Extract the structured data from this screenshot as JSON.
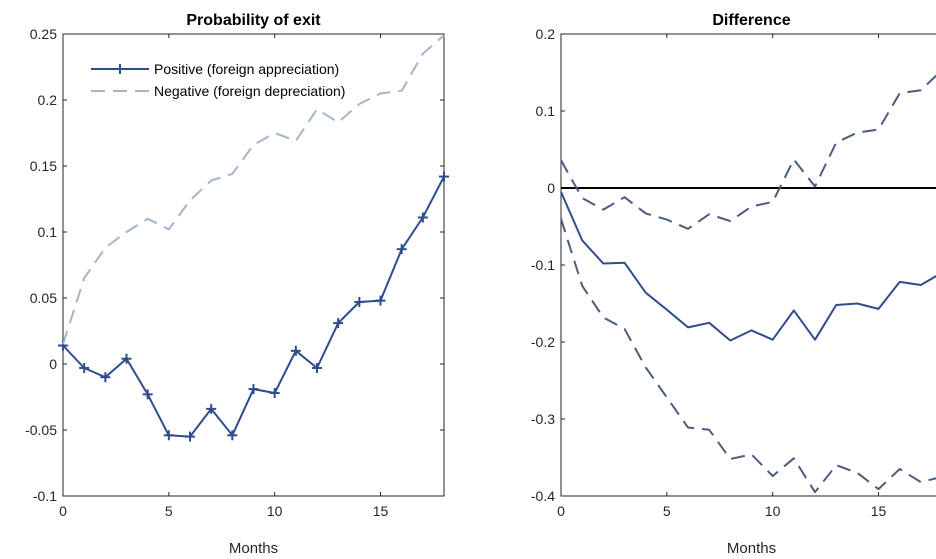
{
  "chart_data": [
    {
      "type": "line",
      "title": "Probability of exit",
      "xlabel": "Months",
      "ylabel": "",
      "xlim": [
        0,
        18
      ],
      "ylim": [
        -0.1,
        0.25
      ],
      "xticks": [
        0,
        5,
        10,
        15
      ],
      "xtick_labels": [
        "0",
        "5",
        "10",
        "15"
      ],
      "yticks": [
        -0.1,
        -0.05,
        0,
        0.05,
        0.1,
        0.15,
        0.2,
        0.25
      ],
      "ytick_labels": [
        "-0.1",
        "-0.05",
        "0",
        "0.05",
        "0.1",
        "0.15",
        "0.2",
        "0.25"
      ],
      "grid": false,
      "legend_position": "top-left",
      "series": [
        {
          "name": "Positive (foreign appreciation)",
          "color": "#2f4d8c",
          "style": "solid-plus-markers",
          "x": [
            0,
            1,
            2,
            3,
            4,
            5,
            6,
            7,
            8,
            9,
            10,
            11,
            12,
            13,
            14,
            15,
            16,
            17,
            18
          ],
          "y": [
            0.014,
            -0.003,
            -0.01,
            0.004,
            -0.023,
            -0.054,
            -0.055,
            -0.034,
            -0.054,
            -0.019,
            -0.022,
            0.01,
            -0.003,
            0.031,
            0.047,
            0.048,
            0.087,
            0.111,
            0.142
          ]
        },
        {
          "name": "Negative (foreign depreciation)",
          "color": "#a3b5cc",
          "style": "dashed",
          "x": [
            0,
            1,
            2,
            3,
            4,
            5,
            6,
            7,
            8,
            9,
            10,
            11,
            12,
            13,
            14,
            15,
            16,
            17,
            18
          ],
          "y": [
            0.015,
            0.065,
            0.088,
            0.1,
            0.11,
            0.102,
            0.124,
            0.139,
            0.144,
            0.166,
            0.175,
            0.169,
            0.193,
            0.183,
            0.197,
            0.205,
            0.207,
            0.235,
            0.249
          ]
        }
      ]
    },
    {
      "type": "line",
      "title": "Difference",
      "xlabel": "Months",
      "ylabel": "",
      "xlim": [
        0,
        18
      ],
      "ylim": [
        -0.4,
        0.2
      ],
      "xticks": [
        0,
        5,
        10,
        15
      ],
      "xtick_labels": [
        "0",
        "5",
        "10",
        "15"
      ],
      "yticks": [
        -0.4,
        -0.3,
        -0.2,
        -0.1,
        0,
        0.1,
        0.2
      ],
      "ytick_labels": [
        "-0.4",
        "-0.3",
        "-0.2",
        "-0.1",
        "0",
        "0.1",
        "0.2"
      ],
      "grid": false,
      "zero_line": true,
      "series": [
        {
          "color": "#2f4d8c",
          "style": "solid",
          "x": [
            0,
            1,
            2,
            3,
            4,
            5,
            6,
            7,
            8,
            9,
            10,
            11,
            12,
            13,
            14,
            15,
            16,
            17,
            18
          ],
          "y": [
            -0.005,
            -0.068,
            -0.098,
            -0.097,
            -0.136,
            -0.158,
            -0.181,
            -0.175,
            -0.198,
            -0.185,
            -0.197,
            -0.159,
            -0.197,
            -0.152,
            -0.15,
            -0.157,
            -0.122,
            -0.126,
            -0.11
          ]
        },
        {
          "color": "#4a5d7e",
          "style": "dashed",
          "x": [
            0,
            1,
            2,
            3,
            4,
            5,
            6,
            7,
            8,
            9,
            10,
            11,
            12,
            13,
            14,
            15,
            16,
            17,
            18
          ],
          "y": [
            0.036,
            -0.013,
            -0.028,
            -0.012,
            -0.033,
            -0.041,
            -0.053,
            -0.034,
            -0.043,
            -0.024,
            -0.018,
            0.037,
            0.002,
            0.059,
            0.072,
            0.076,
            0.123,
            0.127,
            0.153
          ]
        },
        {
          "color": "#4a5d7e",
          "style": "dashed",
          "x": [
            0,
            1,
            2,
            3,
            4,
            5,
            6,
            7,
            8,
            9,
            10,
            11,
            12,
            13,
            14,
            15,
            16,
            17,
            18
          ],
          "y": [
            -0.04,
            -0.127,
            -0.168,
            -0.183,
            -0.233,
            -0.272,
            -0.311,
            -0.314,
            -0.352,
            -0.346,
            -0.374,
            -0.351,
            -0.395,
            -0.36,
            -0.37,
            -0.391,
            -0.365,
            -0.382,
            -0.375
          ]
        }
      ]
    }
  ]
}
